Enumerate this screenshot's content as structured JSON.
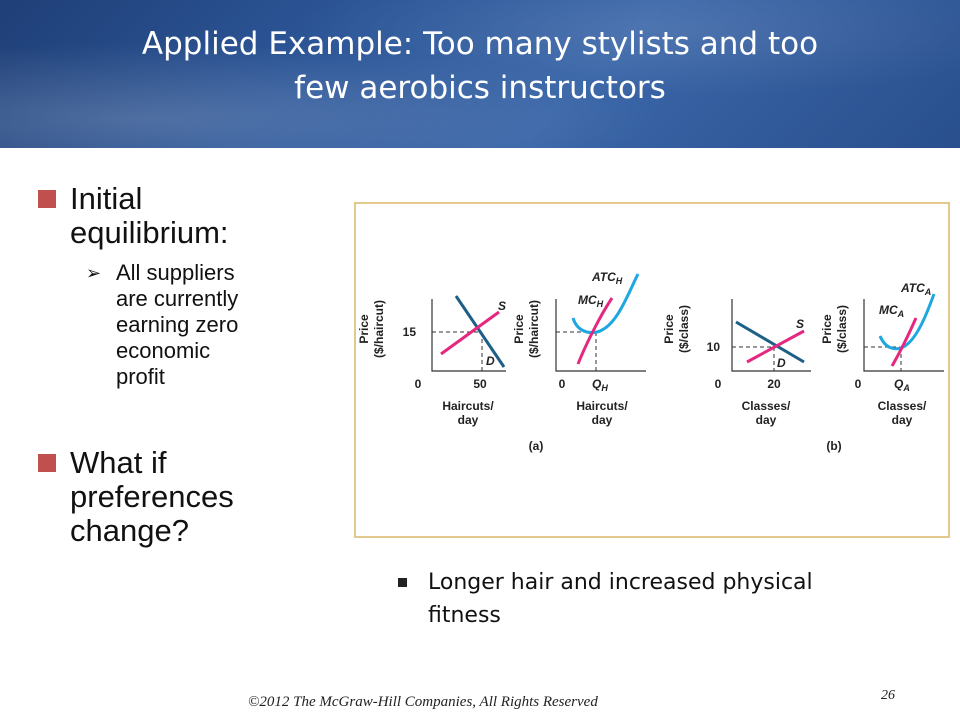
{
  "slide": {
    "title_line1": "Applied Example: Too many stylists and too",
    "title_line2": "few aerobics instructors",
    "bullet1": {
      "line1": "Initial",
      "line2": "equilibrium:"
    },
    "sub_bullet1": {
      "lines": [
        "All suppliers",
        "are currently",
        "earning zero",
        "economic",
        "profit"
      ]
    },
    "bullet2": {
      "lines": [
        "What if",
        "preferences",
        "change?"
      ]
    },
    "note": {
      "line1": "Longer hair and increased physical",
      "line2": "fitness"
    },
    "footer": "©2012 The McGraw-Hill Companies, All Rights Reserved",
    "page_number": "26"
  },
  "colors": {
    "demand": "#1d5f86",
    "supply": "#e5287f",
    "atc": "#1ea7e1",
    "bullet": "#c0504d"
  },
  "diagram": {
    "panel_labels": [
      "(a)",
      "(b)"
    ],
    "graphs": [
      {
        "ylabel": [
          "Price",
          "($/haircut)"
        ],
        "y_tick": "15",
        "x_zero": "0",
        "x_tick": "50",
        "xlabel": [
          "Haircuts/",
          "day"
        ],
        "curves": [
          "S",
          "D"
        ]
      },
      {
        "ylabel": [
          "Price",
          "($/haircut)"
        ],
        "x_zero": "0",
        "x_tick": "Q",
        "x_tick_sub": "H",
        "xlabel": [
          "Haircuts/",
          "day"
        ],
        "curves": [
          {
            "name": "ATC",
            "sub": "H"
          },
          {
            "name": "MC",
            "sub": "H"
          }
        ]
      },
      {
        "ylabel": [
          "Price",
          "($/class)"
        ],
        "y_tick": "10",
        "x_zero": "0",
        "x_tick": "20",
        "xlabel": [
          "Classes/",
          "day"
        ],
        "curves": [
          "S",
          "D"
        ]
      },
      {
        "ylabel": [
          "Price",
          "($/class)"
        ],
        "x_zero": "0",
        "x_tick": "Q",
        "x_tick_sub": "A",
        "xlabel": [
          "Classes/",
          "day"
        ],
        "curves": [
          {
            "name": "ATC",
            "sub": "A"
          },
          {
            "name": "MC",
            "sub": "A"
          }
        ]
      }
    ]
  }
}
